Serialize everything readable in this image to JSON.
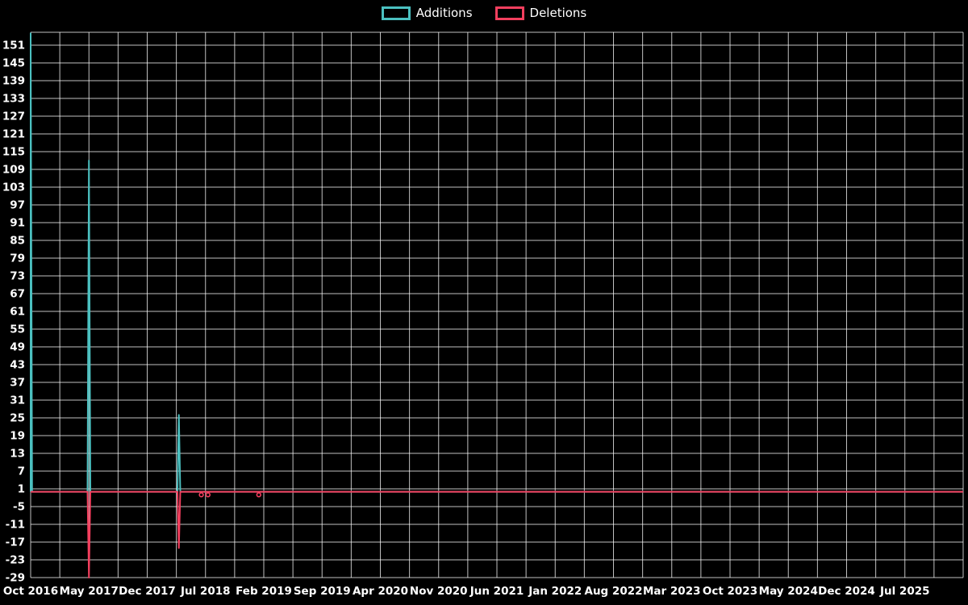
{
  "chart_data": {
    "type": "line",
    "title": "",
    "legend_position": "top-center",
    "background_color": "#000000",
    "grid": true,
    "grid_color": "#ffffff",
    "text_color": "#ffffff",
    "x_axis": {
      "tick_labels": [
        "Oct 2016",
        "May 2017",
        "Dec 2017",
        "Jul 2018",
        "Feb 2019",
        "Sep 2019",
        "Apr 2020",
        "Nov 2020",
        "Jun 2021",
        "Jan 2022",
        "Aug 2022",
        "Mar 2023",
        "Oct 2023",
        "May 2024",
        "Dec 2024",
        "Jul 2025"
      ],
      "months_per_tick_label": 7,
      "minor_gridline_every_months": 3.5,
      "domain_months": [
        0,
        112
      ]
    },
    "y_axis": {
      "tick_labels": [
        151,
        145,
        139,
        133,
        127,
        121,
        115,
        109,
        103,
        97,
        91,
        85,
        79,
        73,
        67,
        61,
        55,
        49,
        43,
        37,
        31,
        25,
        19,
        13,
        7,
        1,
        -5,
        -11,
        -17,
        -23,
        -29
      ],
      "domain": [
        -29,
        155
      ]
    },
    "series": [
      {
        "name": "Additions",
        "color": "#4bc0c0",
        "baseline": 0,
        "spikes": [
          {
            "month": 0,
            "value": 155
          },
          {
            "month": 7,
            "value": 112
          },
          {
            "month": 17.8,
            "value": 26
          }
        ]
      },
      {
        "name": "Deletions",
        "color": "#f43f5e",
        "baseline": 0,
        "spikes": [
          {
            "month": 7,
            "value": -29
          },
          {
            "month": 17.8,
            "value": -19
          }
        ],
        "dot_markers": [
          {
            "month": 20.5,
            "value": -1
          },
          {
            "month": 21.3,
            "value": -1
          },
          {
            "month": 27.4,
            "value": -1
          }
        ]
      }
    ]
  }
}
